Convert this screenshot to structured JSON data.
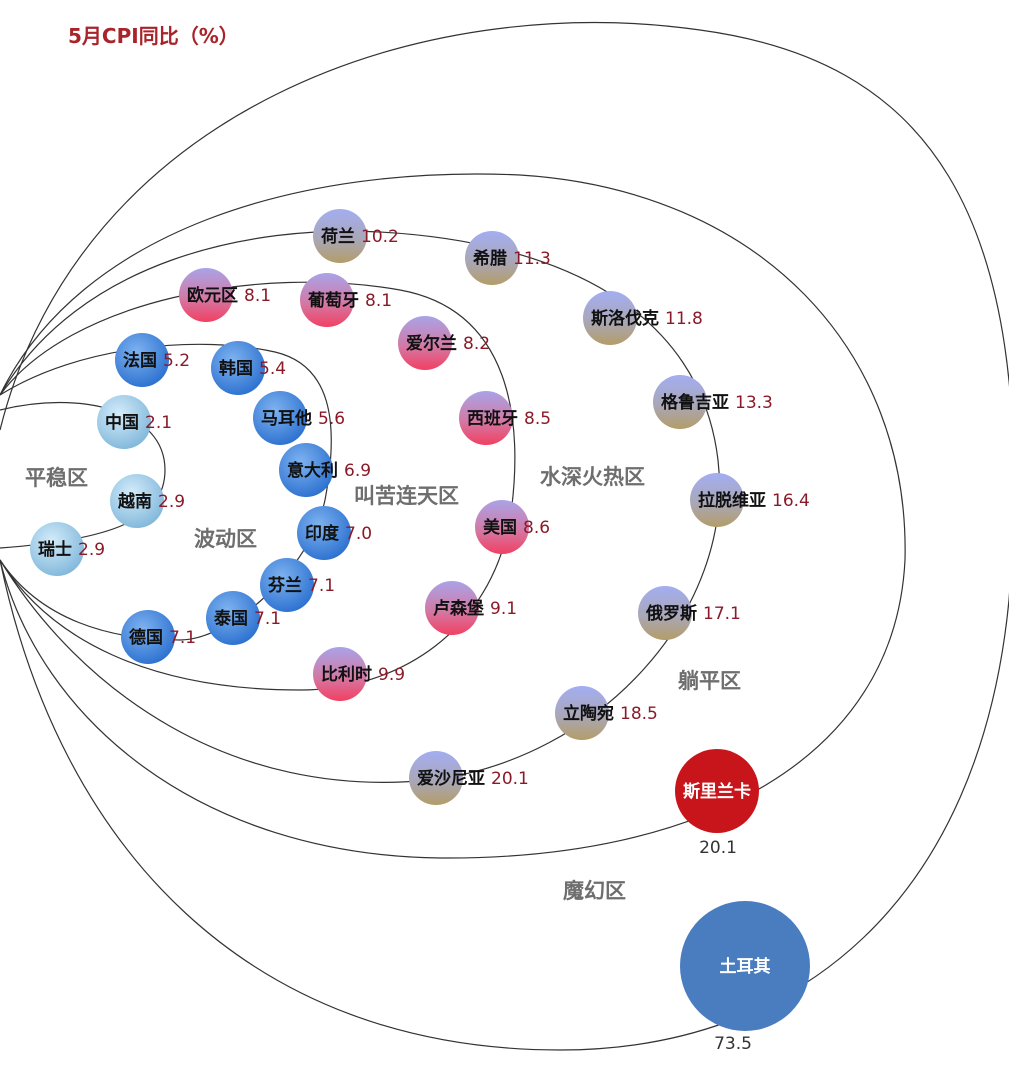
{
  "chart_data": {
    "type": "scatter",
    "title": "5月CPI同比（%）",
    "zones": [
      "平稳区",
      "波动区",
      "叫苦连天区",
      "水深火热区",
      "躺平区",
      "魔幻区"
    ],
    "points": [
      {
        "name": "中国",
        "value": "2.1",
        "zone": "平稳区"
      },
      {
        "name": "越南",
        "value": "2.9",
        "zone": "平稳区"
      },
      {
        "name": "瑞士",
        "value": "2.9",
        "zone": "平稳区"
      },
      {
        "name": "法国",
        "value": "5.2",
        "zone": "波动区"
      },
      {
        "name": "韩国",
        "value": "5.4",
        "zone": "波动区"
      },
      {
        "name": "马耳他",
        "value": "5.6",
        "zone": "波动区"
      },
      {
        "name": "意大利",
        "value": "6.9",
        "zone": "波动区"
      },
      {
        "name": "印度",
        "value": "7.0",
        "zone": "波动区"
      },
      {
        "name": "芬兰",
        "value": "7.1",
        "zone": "波动区"
      },
      {
        "name": "泰国",
        "value": "7.1",
        "zone": "波动区"
      },
      {
        "name": "德国",
        "value": "7.1",
        "zone": "波动区"
      },
      {
        "name": "欧元区",
        "value": "8.1",
        "zone": "叫苦连天区"
      },
      {
        "name": "葡萄牙",
        "value": "8.1",
        "zone": "叫苦连天区"
      },
      {
        "name": "爱尔兰",
        "value": "8.2",
        "zone": "叫苦连天区"
      },
      {
        "name": "西班牙",
        "value": "8.5",
        "zone": "叫苦连天区"
      },
      {
        "name": "美国",
        "value": "8.6",
        "zone": "叫苦连天区"
      },
      {
        "name": "卢森堡",
        "value": "9.1",
        "zone": "叫苦连天区"
      },
      {
        "name": "比利时",
        "value": "9.9",
        "zone": "叫苦连天区"
      },
      {
        "name": "荷兰",
        "value": "10.2",
        "zone": "水深火热区"
      },
      {
        "name": "希腊",
        "value": "11.3",
        "zone": "水深火热区"
      },
      {
        "name": "斯洛伐克",
        "value": "11.8",
        "zone": "水深火热区"
      },
      {
        "name": "格鲁吉亚",
        "value": "13.3",
        "zone": "水深火热区"
      },
      {
        "name": "拉脱维亚",
        "value": "16.4",
        "zone": "水深火热区"
      },
      {
        "name": "俄罗斯",
        "value": "17.1",
        "zone": "水深火热区"
      },
      {
        "name": "立陶宛",
        "value": "18.5",
        "zone": "水深火热区"
      },
      {
        "name": "爱沙尼亚",
        "value": "20.1",
        "zone": "水深火热区"
      },
      {
        "name": "斯里兰卡",
        "value": "20.1",
        "zone": "躺平区"
      },
      {
        "name": "土耳其",
        "value": "73.5",
        "zone": "魔幻区"
      }
    ]
  },
  "colors": {
    "title": "#a8242a",
    "stable_blue": "#8fc1e0",
    "wave_blue": "#3b83d8",
    "pink_top": "#a99be0",
    "pink_bottom": "#ee4a6a",
    "tan_top": "#9ea8ee",
    "tan_bottom": "#b3a06e",
    "sri_lanka": "#c8151b",
    "turkey": "#4a7dbf"
  }
}
